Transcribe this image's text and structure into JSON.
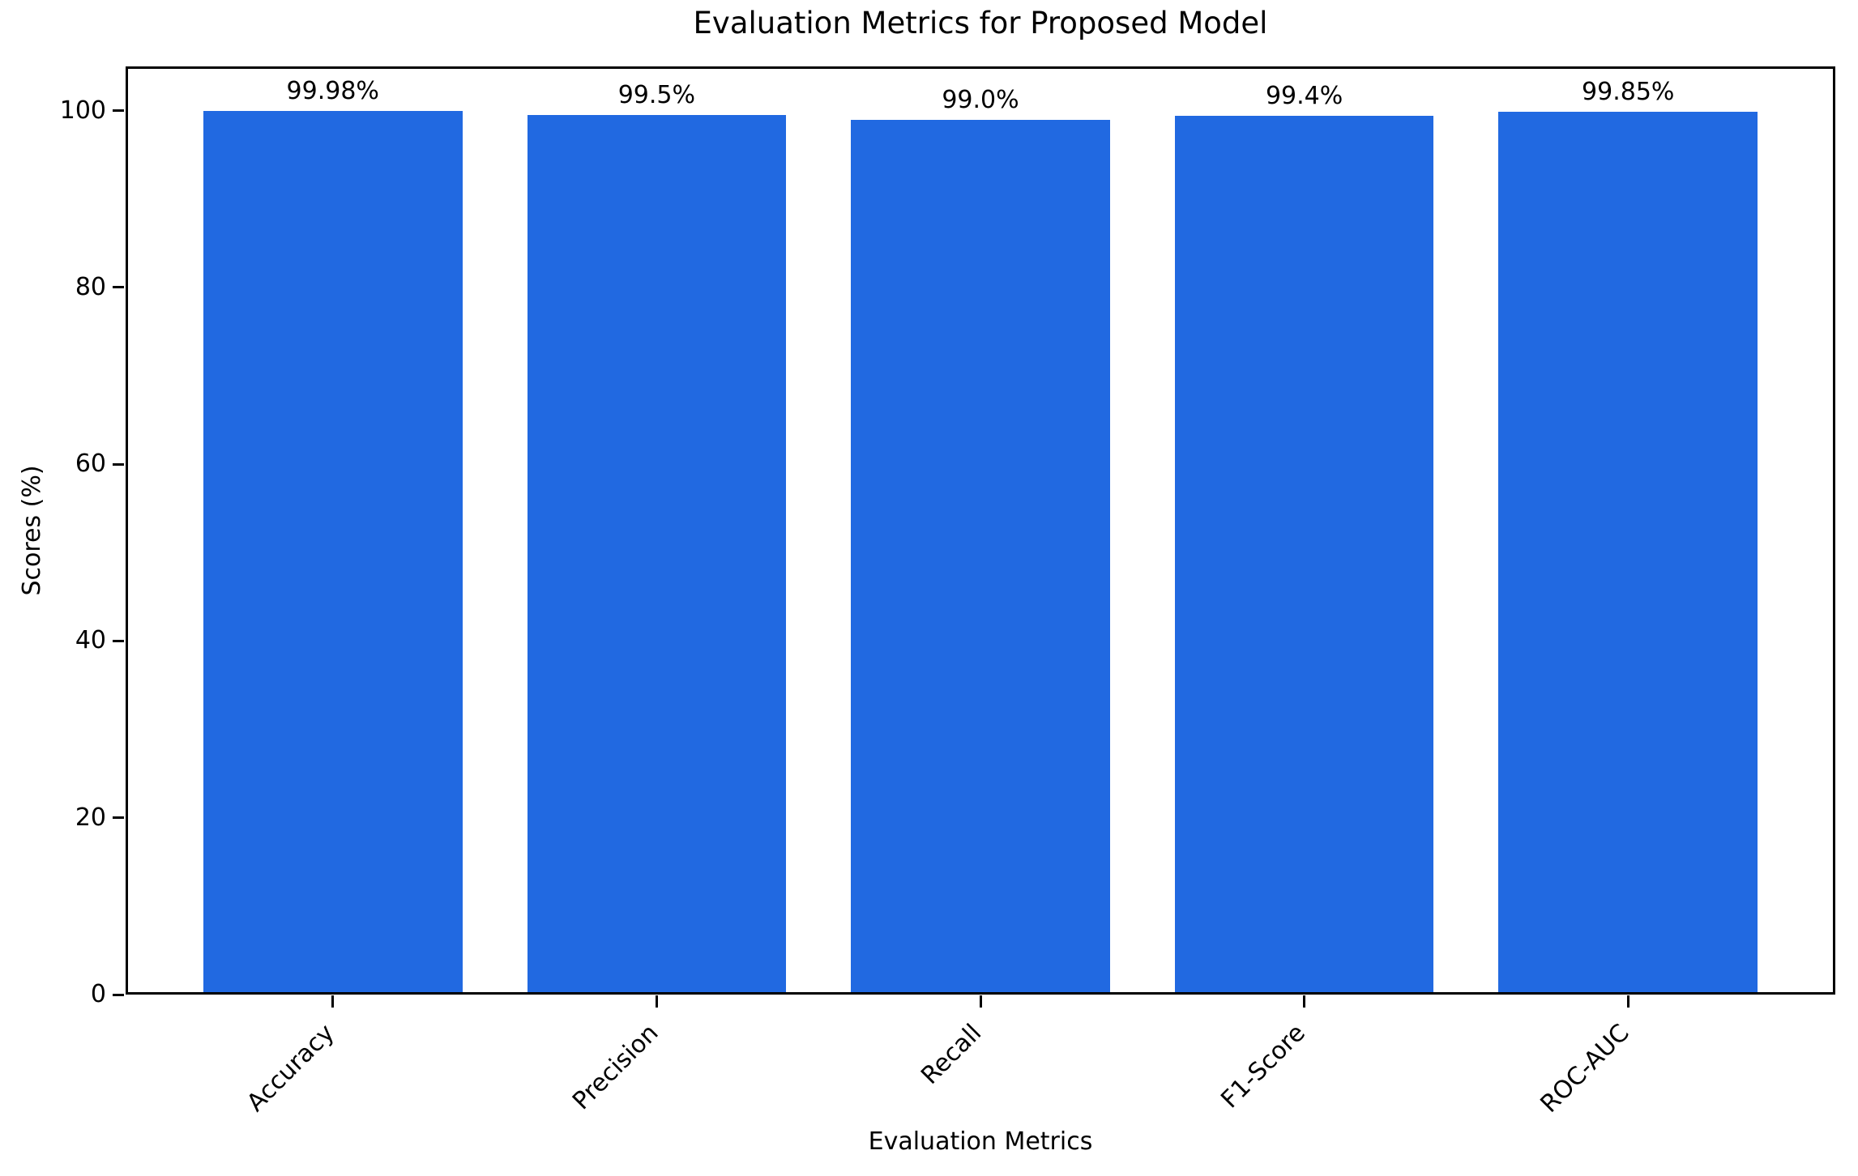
{
  "chart_data": {
    "type": "bar",
    "title": "Evaluation Metrics for Proposed Model",
    "xlabel": "Evaluation Metrics",
    "ylabel": "Scores (%)",
    "categories": [
      "Accuracy",
      "Precision",
      "Recall",
      "F1-Score",
      "ROC-AUC"
    ],
    "values": [
      99.98,
      99.5,
      99.0,
      99.4,
      99.85
    ],
    "bar_labels": [
      "99.98%",
      "99.5%",
      "99.0%",
      "99.4%",
      "99.85%"
    ],
    "bar_color": "#2169e1",
    "ylim": [
      0,
      105
    ],
    "yticks": [
      0,
      20,
      40,
      60,
      80,
      100
    ],
    "xlim": [
      -0.64,
      4.64
    ],
    "bar_width": 0.8,
    "x_tick_rotation": 45,
    "grid": false,
    "legend": false
  }
}
